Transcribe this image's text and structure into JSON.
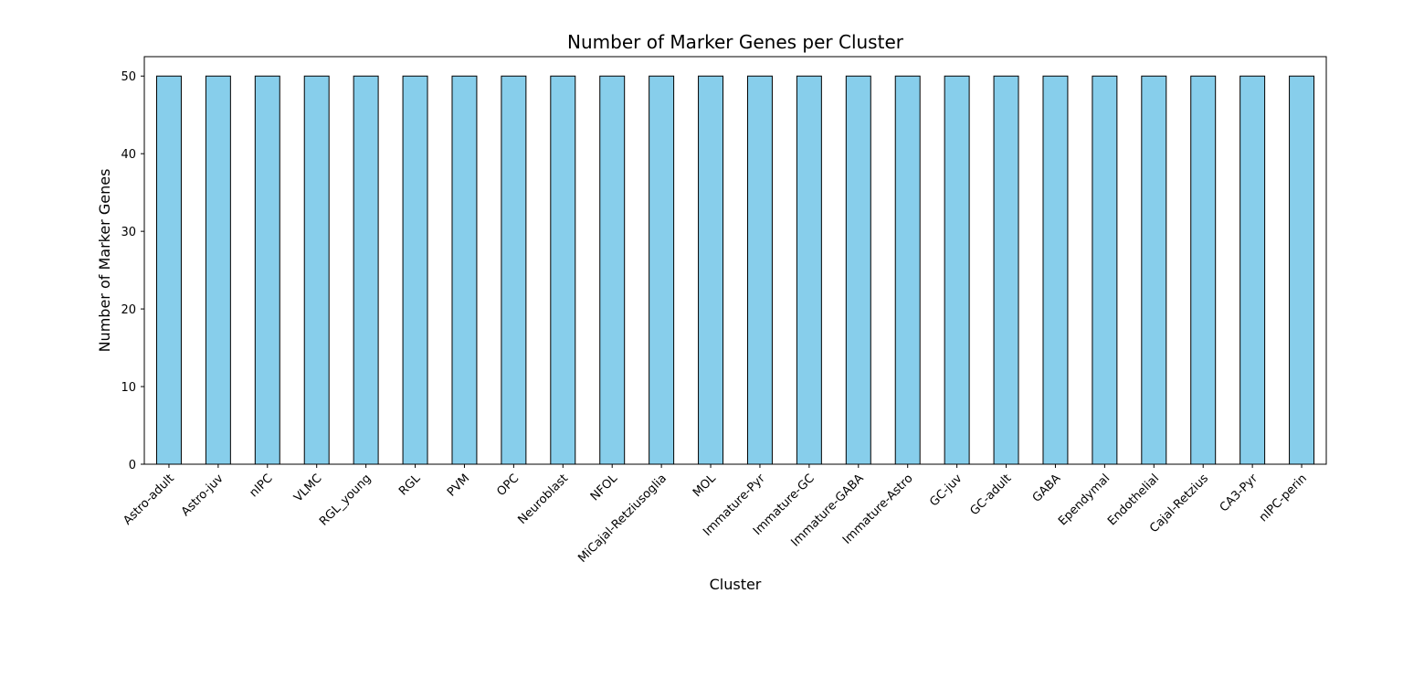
{
  "chart_data": {
    "type": "bar",
    "title": "Number of Marker Genes per Cluster",
    "xlabel": "Cluster",
    "ylabel": "Number of Marker Genes",
    "categories": [
      "Astro-adult",
      "Astro-juv",
      "nIPC",
      "VLMC",
      "RGL_young",
      "RGL",
      "PVM",
      "OPC",
      "Neuroblast",
      "NFOL",
      "MiCajal-Retziusoglia",
      "MOL",
      "Immature-Pyr",
      "Immature-GC",
      "Immature-GABA",
      "Immature-Astro",
      "GC-juv",
      "GC-adult",
      "GABA",
      "Ependymal",
      "Endothelial",
      "Cajal-Retzius",
      "CA3-Pyr",
      "nIPC-perin"
    ],
    "values": [
      50,
      50,
      50,
      50,
      50,
      50,
      50,
      50,
      50,
      50,
      50,
      50,
      50,
      50,
      50,
      50,
      50,
      50,
      50,
      50,
      50,
      50,
      50,
      50
    ],
    "yticks": [
      0,
      10,
      20,
      30,
      40,
      50
    ],
    "ylim": [
      0,
      52.5
    ],
    "grid": false,
    "bar_color": "#87ceeb",
    "edge_color": "#000000"
  }
}
